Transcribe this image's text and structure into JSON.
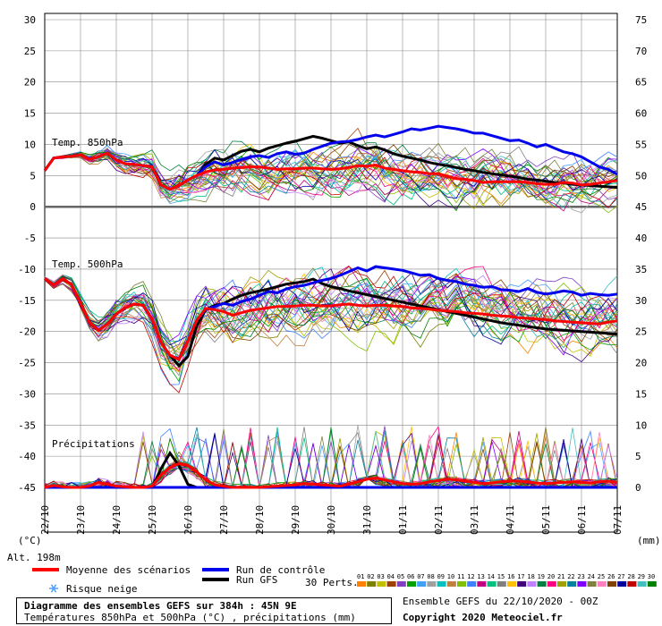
{
  "chart_data": {
    "type": "line",
    "title_panel_850": "Temp. 850hPa",
    "title_panel_500": "Temp. 500hPa",
    "title_panel_precip": "Précipitations",
    "left_axis": {
      "unit": "(°C)",
      "ticks": [
        30,
        25,
        20,
        15,
        10,
        5,
        0,
        -5,
        -10,
        -15,
        -20,
        -25,
        -30,
        -35,
        -40,
        -45
      ],
      "range": [
        -45,
        30
      ]
    },
    "right_axis": {
      "unit": "(mm)",
      "ticks": [
        75,
        70,
        65,
        60,
        55,
        50,
        45,
        40,
        35,
        30,
        25,
        20,
        15,
        10,
        5,
        0
      ],
      "range": [
        0,
        75
      ]
    },
    "x_labels": [
      "22/10",
      "23/10",
      "24/10",
      "25/10",
      "26/10",
      "27/10",
      "28/10",
      "29/10",
      "30/10",
      "31/10",
      "01/11",
      "02/11",
      "03/11",
      "04/11",
      "05/11",
      "06/11",
      "07/11"
    ],
    "alt_label": "Alt. 198m",
    "series": [
      {
        "name": "Moyenne des scénarios",
        "color": "#ff0000",
        "t850": [
          5.8,
          7.8,
          8.0,
          8.1,
          8.3,
          7.6,
          8.0,
          8.6,
          7.5,
          6.9,
          6.8,
          6.6,
          6.4,
          3.5,
          2.8,
          3.4,
          4.3,
          5.0,
          5.6,
          5.9,
          6.0,
          6.2,
          6.3,
          6.4,
          6.4,
          6.2,
          6.0,
          6.1,
          6.1,
          6.2,
          6.2,
          6.1,
          6.0,
          6.1,
          6.3,
          6.6,
          6.5,
          6.7,
          6.2,
          6.0,
          5.8,
          5.6,
          5.5,
          5.3,
          5.3,
          4.9,
          4.5,
          4.4,
          4.2,
          3.9,
          4.0,
          4.0,
          4.0,
          4.0,
          3.9,
          3.7,
          3.6,
          3.6,
          3.9,
          3.8,
          3.5,
          3.6,
          3.8,
          4.0,
          4.2
        ],
        "t500": [
          -11.5,
          -12.5,
          -11.5,
          -12.5,
          -15.5,
          -18.5,
          -19.8,
          -18.8,
          -17.2,
          -16.2,
          -15.6,
          -15.8,
          -18.0,
          -21.8,
          -23.8,
          -24.5,
          -21.5,
          -18.2,
          -16.3,
          -16.5,
          -16.8,
          -17.4,
          -17.0,
          -16.6,
          -16.4,
          -16.2,
          -16.0,
          -16.0,
          -15.9,
          -15.8,
          -15.8,
          -15.9,
          -15.9,
          -15.7,
          -15.6,
          -15.8,
          -15.9,
          -15.8,
          -15.8,
          -15.9,
          -16.0,
          -16.2,
          -16.3,
          -16.4,
          -16.6,
          -16.7,
          -16.8,
          -17.0,
          -17.1,
          -17.2,
          -17.4,
          -17.5,
          -17.6,
          -17.8,
          -17.9,
          -18.0,
          -18.1,
          -18.3,
          -18.4,
          -18.5,
          -18.6,
          -18.7,
          -18.8,
          -18.5,
          -18.3
        ],
        "precip": [
          0,
          0.3,
          0.1,
          0,
          0,
          0.2,
          0.8,
          0.5,
          0.2,
          0.1,
          0,
          0,
          0.2,
          2.0,
          3.2,
          3.8,
          3.5,
          2.5,
          1.2,
          0.4,
          0.2,
          0,
          0,
          0,
          0,
          0.1,
          0.2,
          0.3,
          0.4,
          0.6,
          0.5,
          0.4,
          0.3,
          0.2,
          0.5,
          0.9,
          1.3,
          1.5,
          1.2,
          0.9,
          0.6,
          0.5,
          0.6,
          0.9,
          1.1,
          1.3,
          1.2,
          1.0,
          0.8,
          0.6,
          0.7,
          0.9,
          1.0,
          1.0,
          0.9,
          0.7,
          0.6,
          0.7,
          0.8,
          0.9,
          0.8,
          0.7,
          0.9,
          1.0,
          0.8
        ]
      },
      {
        "name": "Run de contrôle",
        "color": "#0000ee",
        "t850": [
          5.8,
          7.8,
          8.0,
          8.1,
          8.3,
          7.6,
          8.0,
          8.6,
          7.5,
          6.9,
          6.8,
          6.6,
          6.4,
          3.5,
          2.8,
          3.4,
          4.3,
          5.0,
          6.4,
          7.2,
          6.7,
          7.1,
          7.6,
          8.0,
          8.2,
          7.9,
          8.5,
          8.8,
          8.4,
          8.6,
          9.2,
          9.7,
          10.2,
          10.4,
          10.5,
          10.8,
          11.2,
          11.5,
          11.2,
          11.6,
          12.0,
          12.5,
          12.3,
          12.6,
          12.9,
          12.7,
          12.5,
          12.2,
          11.8,
          11.8,
          11.4,
          11.0,
          10.6,
          10.7,
          10.2,
          9.6,
          10.0,
          9.4,
          8.8,
          8.5,
          8.0,
          7.2,
          6.4,
          6.0,
          5.2
        ],
        "t500": [
          -11.5,
          -12.5,
          -11.5,
          -12.5,
          -15.5,
          -18.5,
          -19.8,
          -18.8,
          -17.2,
          -16.2,
          -15.6,
          -15.8,
          -18.0,
          -21.8,
          -23.8,
          -24.5,
          -21.5,
          -18.2,
          -16.5,
          -16.0,
          -15.5,
          -15.8,
          -15.2,
          -14.8,
          -14.2,
          -13.6,
          -13.8,
          -13.2,
          -12.8,
          -12.6,
          -12.2,
          -11.8,
          -11.5,
          -11.0,
          -10.4,
          -9.8,
          -10.3,
          -9.6,
          -9.8,
          -10.0,
          -10.2,
          -10.6,
          -11.0,
          -10.9,
          -11.5,
          -11.8,
          -12.0,
          -12.4,
          -12.6,
          -12.9,
          -12.8,
          -13.3,
          -13.4,
          -13.6,
          -13.1,
          -13.7,
          -14.0,
          -13.8,
          -13.5,
          -13.7,
          -14.2,
          -13.9,
          -14.1,
          -14.2,
          -14.0
        ],
        "precip": [
          0,
          0,
          0,
          0,
          0,
          0,
          0,
          0,
          0,
          0,
          0,
          0,
          0,
          0,
          0,
          0,
          0,
          0,
          0,
          0,
          0,
          0,
          0,
          0,
          0,
          0,
          0,
          0,
          0,
          0,
          0,
          0,
          0,
          0,
          0,
          0,
          0,
          0,
          0,
          0,
          0,
          0,
          0,
          0,
          0,
          0,
          0,
          0,
          0,
          0,
          0,
          0,
          0,
          0,
          0,
          0,
          0,
          0,
          0,
          0,
          0,
          0,
          0,
          0,
          0
        ]
      },
      {
        "name": "Run GFS",
        "color": "#000000",
        "t850": [
          5.8,
          7.8,
          8.0,
          8.1,
          8.3,
          7.6,
          8.0,
          8.6,
          7.5,
          6.9,
          6.8,
          6.6,
          6.4,
          3.5,
          2.8,
          3.4,
          4.3,
          5.0,
          6.8,
          7.8,
          7.5,
          8.2,
          8.9,
          9.2,
          8.8,
          9.4,
          9.8,
          10.2,
          10.5,
          10.9,
          11.3,
          11.0,
          10.6,
          10.2,
          10.4,
          9.8,
          9.3,
          9.6,
          9.1,
          8.5,
          8.1,
          7.8,
          7.5,
          7.1,
          6.8,
          6.6,
          6.3,
          6.0,
          5.8,
          5.5,
          5.3,
          5.1,
          4.9,
          4.7,
          4.4,
          4.3,
          4.1,
          3.9,
          3.8,
          3.6,
          3.5,
          3.4,
          3.3,
          3.2,
          3.1
        ],
        "t500": [
          -11.5,
          -12.5,
          -11.5,
          -12.5,
          -15.5,
          -18.5,
          -19.8,
          -18.8,
          -17.2,
          -16.2,
          -15.6,
          -15.8,
          -18.0,
          -21.8,
          -23.8,
          -25.5,
          -24.0,
          -19.0,
          -16.5,
          -15.8,
          -15.5,
          -14.8,
          -14.2,
          -13.8,
          -13.5,
          -13.2,
          -12.8,
          -12.4,
          -12.2,
          -12.0,
          -11.6,
          -12.3,
          -12.8,
          -13.1,
          -13.5,
          -13.8,
          -14.1,
          -14.4,
          -14.7,
          -15.0,
          -15.3,
          -15.6,
          -15.9,
          -16.2,
          -16.5,
          -16.8,
          -17.1,
          -17.4,
          -17.7,
          -18.0,
          -18.3,
          -18.6,
          -18.8,
          -19.0,
          -19.2,
          -19.4,
          -19.6,
          -19.7,
          -19.8,
          -19.9,
          -20.0,
          -20.1,
          -20.2,
          -20.3,
          -20.4
        ],
        "precip": [
          0,
          0,
          0,
          0,
          0,
          0,
          0,
          0,
          0,
          0,
          0,
          0,
          0,
          3.0,
          5.5,
          3.5,
          0.5,
          0,
          0,
          0,
          0,
          0,
          0,
          0,
          0,
          0,
          0,
          0,
          0,
          0,
          0,
          0,
          0,
          0,
          0,
          0,
          0,
          0,
          0,
          0,
          0,
          0,
          0,
          0,
          0,
          0,
          0,
          0,
          0,
          0,
          0,
          0,
          0,
          0,
          0,
          0,
          0,
          0,
          0,
          0,
          0,
          0,
          0,
          0,
          0
        ]
      }
    ],
    "perturbations": {
      "label": "30 Perts.",
      "ids": [
        "01",
        "02",
        "03",
        "04",
        "05",
        "06",
        "07",
        "08",
        "09",
        "10",
        "11",
        "12",
        "13",
        "14",
        "15",
        "16",
        "17",
        "18",
        "19",
        "20",
        "21",
        "22",
        "23",
        "24",
        "25",
        "26",
        "27",
        "28",
        "29",
        "30"
      ],
      "colors": [
        "#ff8000",
        "#808000",
        "#c0c000",
        "#a04000",
        "#8040c0",
        "#00a000",
        "#40a0ff",
        "#a0a0a0",
        "#00c0c0",
        "#c08040",
        "#80c000",
        "#4080ff",
        "#c00080",
        "#00c080",
        "#808080",
        "#ffc000",
        "#400080",
        "#c080ff",
        "#008040",
        "#ff0080",
        "#a0a000",
        "#0080a0",
        "#8000ff",
        "#808040",
        "#ff80c0",
        "#804000",
        "#0000a0",
        "#c00000",
        "#40c0c0",
        "#008000"
      ]
    }
  },
  "legend": {
    "mean": "Moyenne des scénarios",
    "control": "Run de contrôle",
    "gfs": "Run GFS",
    "snow": "Risque neige",
    "perts_label": "30 Perts."
  },
  "footer": {
    "title": "Diagramme des ensembles GEFS sur 384h : 45N 9E",
    "subtitle": "Températures 850hPa et 500hPa (°C) , précipitations (mm)",
    "run": "Ensemble GEFS du 22/10/2020 - 00Z",
    "copyright": "Copyright 2020 Meteociel.fr"
  },
  "colors": {
    "mean": "#ff0000",
    "control": "#0000ee",
    "gfs": "#000000",
    "grid": "#999999"
  }
}
